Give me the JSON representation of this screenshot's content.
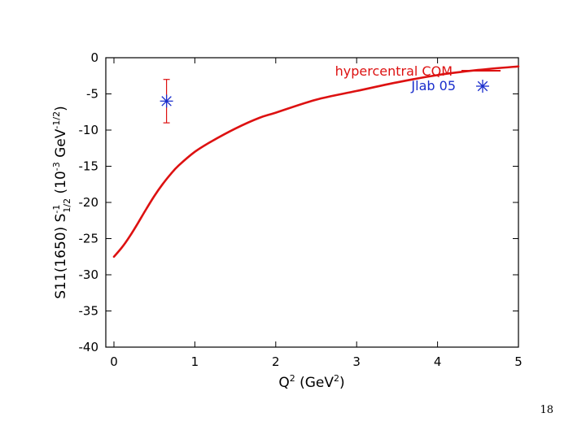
{
  "slide": {
    "page_number": "18"
  },
  "chart_data": {
    "type": "line",
    "title": "",
    "xlabel": {
      "base": "Q",
      "sup": "2",
      "unit_open": " (GeV",
      "unit_sup": "2",
      "unit_close": ")"
    },
    "ylabel": {
      "text1": "S11(1650) S",
      "sup1": "-1",
      "sub1": "1/2",
      "text2": " (10",
      "sup2": "-3",
      "text3": " GeV",
      "sup3": "-1/2",
      "text4": ")"
    },
    "xlim": [
      0,
      5
    ],
    "ylim": [
      -40,
      0
    ],
    "xticks": [
      0,
      1,
      2,
      3,
      4,
      5
    ],
    "yticks": [
      0,
      -5,
      -10,
      -15,
      -20,
      -25,
      -30,
      -35,
      -40
    ],
    "grid": false,
    "legend_position": "top-right",
    "colors": {
      "model": "#dd1111",
      "data": "#1a2ecc",
      "frame": "#000000"
    },
    "series": [
      {
        "name": "hypercentral CQM",
        "style": "line",
        "x": [
          0.0,
          0.1,
          0.2,
          0.3,
          0.4,
          0.5,
          0.6,
          0.7,
          0.8,
          1.0,
          1.2,
          1.5,
          1.8,
          2.0,
          2.5,
          3.0,
          3.5,
          4.0,
          4.5,
          5.0
        ],
        "y": [
          -27.5,
          -26.2,
          -24.6,
          -22.8,
          -20.9,
          -19.1,
          -17.5,
          -16.1,
          -14.9,
          -13.0,
          -11.6,
          -9.8,
          -8.3,
          -7.6,
          -5.8,
          -4.6,
          -3.4,
          -2.4,
          -1.7,
          -1.2
        ]
      },
      {
        "name": "Jlab 05",
        "style": "points",
        "points": [
          {
            "x": 0.65,
            "y": -6.0,
            "y_err_low": -9.0,
            "y_err_high": -3.0
          }
        ]
      }
    ]
  }
}
